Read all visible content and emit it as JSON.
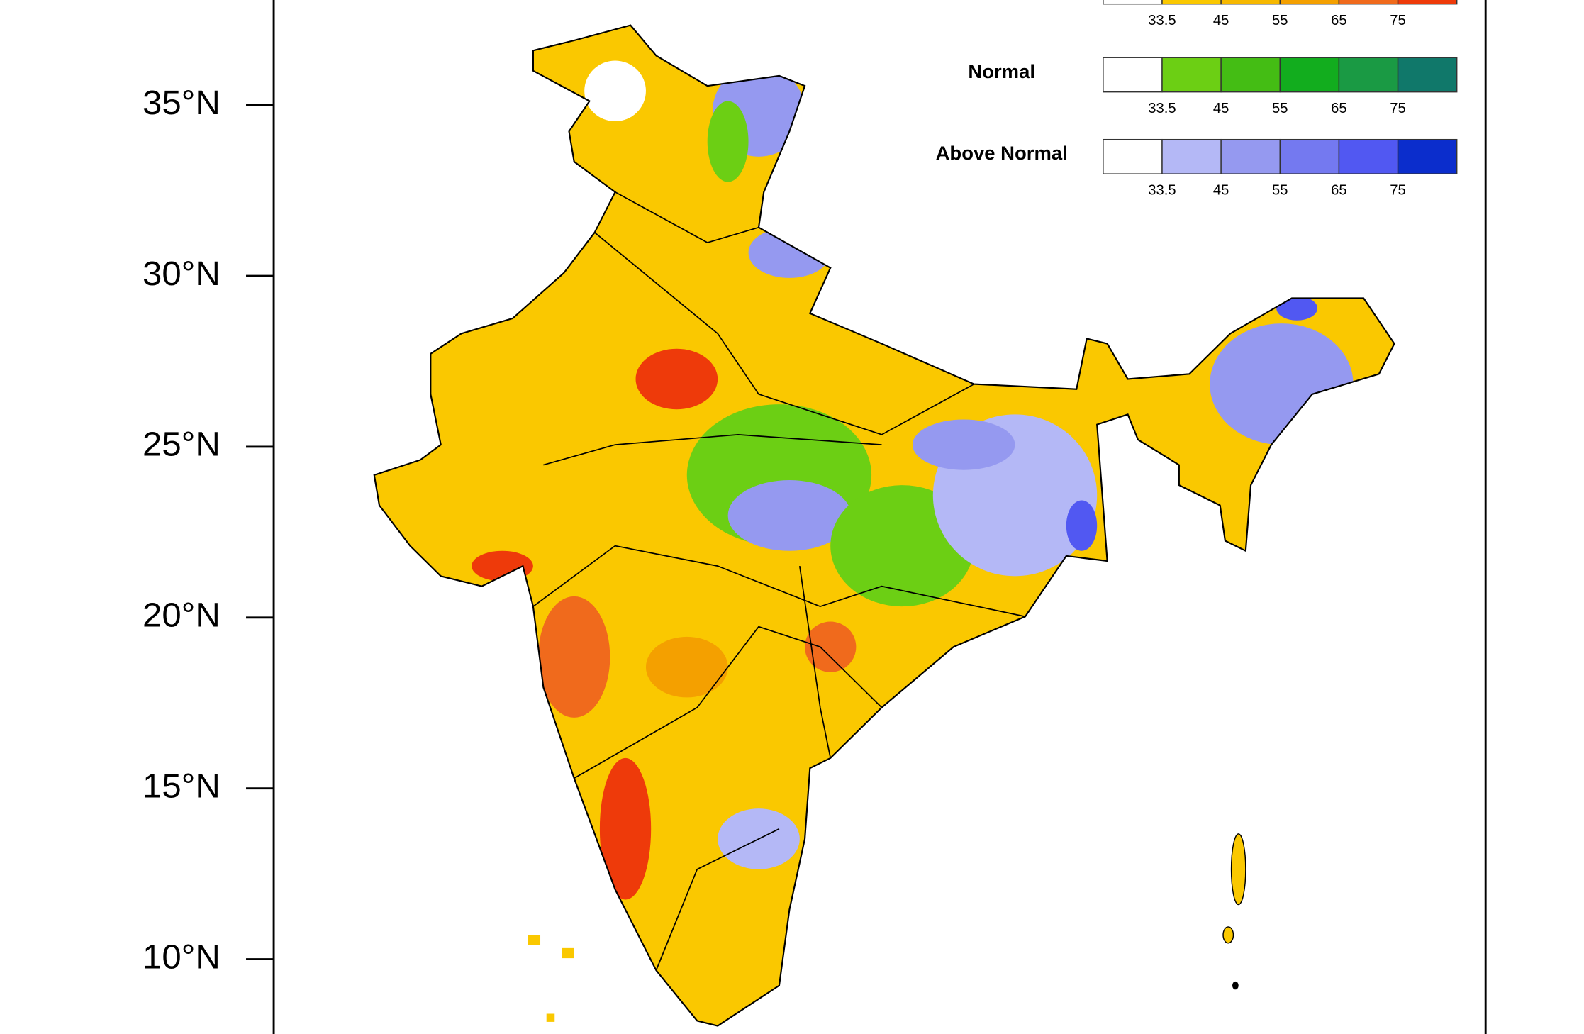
{
  "axis": {
    "lat_labels": [
      "35°N",
      "30°N",
      "25°N",
      "20°N",
      "15°N",
      "10°N"
    ]
  },
  "legend": [
    {
      "colors": [
        "#ffffff",
        "#fac800",
        "#f6b800",
        "#f4a000",
        "#f06a1c",
        "#ee3a0a"
      ],
      "ticks": [
        33.5,
        45,
        55,
        65,
        75
      ]
    },
    {
      "name": "Normal",
      "colors": [
        "#ffffff",
        "#6ccf14",
        "#44bd14",
        "#12ad1e",
        "#1a9a44",
        "#10786a"
      ],
      "ticks": [
        33.5,
        45,
        55,
        65,
        75
      ]
    },
    {
      "name": "Above Normal",
      "colors": [
        "#ffffff",
        "#b4b8f6",
        "#9599f0",
        "#7479f0",
        "#5158f2",
        "#0b2dcc"
      ],
      "ticks": [
        33.5,
        45,
        55,
        65,
        75
      ]
    }
  ]
}
